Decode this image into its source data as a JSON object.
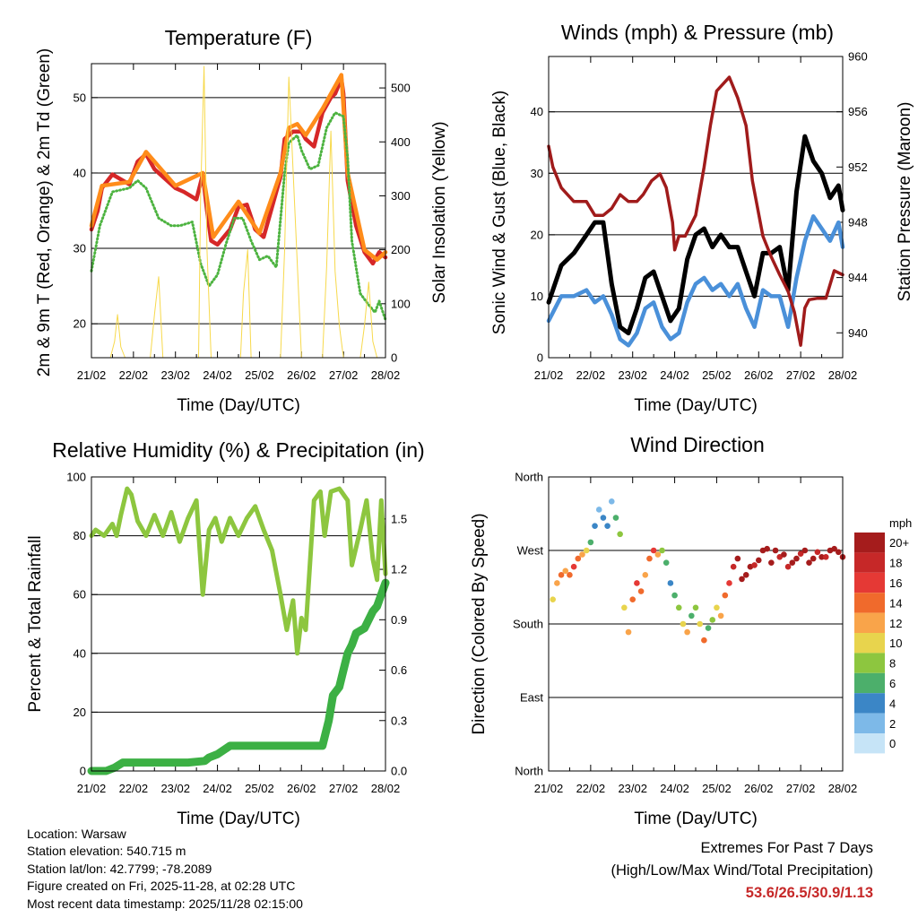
{
  "chart_data": [
    {
      "type": "line",
      "title": "Temperature (F)",
      "xlabel": "Time (Day/UTC)",
      "ylabel": "2m & 9m T (Red, Orange) & 2m Td (Green)",
      "y2label": "Solar Insolation (Yellow)",
      "xticks": [
        "21/02",
        "22/02",
        "23/02",
        "24/02",
        "25/02",
        "26/02",
        "27/02",
        "28/02"
      ],
      "yticks": [
        20,
        30,
        40,
        50
      ],
      "y2ticks": [
        0,
        100,
        200,
        300,
        400,
        500
      ],
      "ylim": [
        15.5,
        54.5
      ],
      "y2lim": [
        0,
        545
      ],
      "series": [
        {
          "name": "2m T",
          "color": "#d62728",
          "x": [
            0,
            0.15,
            0.25,
            0.5,
            0.9,
            1.1,
            1.3,
            1.5,
            1.7,
            2.0,
            2.2,
            2.5,
            2.65,
            2.75,
            2.85,
            3.0,
            3.3,
            3.5,
            3.7,
            3.9,
            4.1,
            4.3,
            4.5,
            4.6,
            4.8,
            5.0,
            5.1,
            5.3,
            5.5,
            5.7,
            5.8,
            5.95,
            6.0,
            6.1,
            6.3,
            6.5,
            6.7,
            6.85,
            7.0
          ],
          "values": [
            32.5,
            35,
            38,
            39.8,
            38.5,
            41.5,
            42.5,
            40.5,
            39.5,
            38,
            37.5,
            36.5,
            39.8,
            35,
            31,
            30.5,
            32.5,
            35.5,
            35.8,
            32.5,
            31.5,
            35.5,
            39.5,
            44.5,
            45.5,
            45.5,
            44.5,
            43.5,
            48,
            50,
            50.5,
            52.5,
            50.5,
            39,
            33,
            29.5,
            28,
            29.5,
            28.8
          ]
        },
        {
          "name": "9m T",
          "color": "#ff8c1a",
          "x": [
            0,
            0.25,
            0.9,
            1.3,
            2.0,
            2.65,
            2.9,
            3.5,
            4.0,
            4.5,
            4.7,
            4.9,
            5.1,
            5.5,
            5.95,
            6.1,
            6.5,
            6.8,
            7.0
          ],
          "values": [
            33,
            38.3,
            38.8,
            42.8,
            38.3,
            40,
            31.5,
            36.2,
            32,
            40,
            46,
            46.5,
            45,
            48.5,
            53,
            40,
            29.8,
            28.5,
            29.5
          ]
        },
        {
          "name": "2m Td",
          "color": "#4db340",
          "x": [
            0,
            0.2,
            0.5,
            0.9,
            1.1,
            1.3,
            1.6,
            1.9,
            2.1,
            2.4,
            2.6,
            2.8,
            3.0,
            3.2,
            3.4,
            3.6,
            3.8,
            4.0,
            4.2,
            4.4,
            4.6,
            4.7,
            4.9,
            5.0,
            5.2,
            5.4,
            5.6,
            5.8,
            6.0,
            6.1,
            6.2,
            6.4,
            6.6,
            6.75,
            6.85,
            7.0
          ],
          "values": [
            27,
            33,
            37.5,
            38,
            39,
            38,
            34,
            33,
            33,
            33.5,
            28,
            25,
            26.5,
            30.5,
            34,
            34,
            31,
            28.5,
            29,
            27.5,
            40,
            44,
            45,
            43,
            40.5,
            41,
            46,
            48,
            47.5,
            42,
            31,
            24,
            22.5,
            21.5,
            23,
            20.5
          ]
        },
        {
          "name": "Solar Insolation",
          "color": "#f7d94c",
          "axis": "right",
          "x": [
            0.45,
            0.55,
            0.62,
            0.7,
            0.8,
            1.4,
            1.5,
            1.6,
            1.7,
            2.55,
            2.6,
            2.68,
            2.75,
            2.85,
            3.55,
            3.62,
            3.72,
            3.8,
            4.5,
            4.6,
            4.7,
            4.85,
            5.0,
            5.1,
            5.5,
            5.6,
            5.7,
            5.8,
            5.9,
            6.0,
            6.1,
            6.4,
            6.5,
            6.6,
            6.7,
            6.8
          ],
          "values": [
            0,
            30,
            80,
            20,
            0,
            0,
            80,
            150,
            0,
            0,
            300,
            540,
            200,
            0,
            0,
            120,
            200,
            0,
            0,
            200,
            520,
            260,
            0,
            0,
            0,
            170,
            420,
            160,
            60,
            0,
            0,
            0,
            60,
            140,
            30,
            0
          ]
        }
      ]
    },
    {
      "type": "line",
      "title": "Winds (mph) & Pressure (mb)",
      "xlabel": "Time (Day/UTC)",
      "ylabel": "Sonic Wind & Gust (Blue, Black)",
      "y2label": "Station Pressure (Maroon)",
      "xticks": [
        "21/02",
        "22/02",
        "23/02",
        "24/02",
        "25/02",
        "26/02",
        "27/02",
        "28/02"
      ],
      "yticks": [
        0,
        10,
        20,
        30,
        40
      ],
      "y2ticks": [
        940,
        944,
        948,
        952,
        956,
        960
      ],
      "ylim": [
        0,
        49
      ],
      "y2lim": [
        938.2,
        960
      ],
      "series": [
        {
          "name": "Sonic Wind",
          "color": "#4a90d9",
          "x": [
            0,
            0.3,
            0.6,
            0.9,
            1.1,
            1.3,
            1.5,
            1.7,
            1.9,
            2.1,
            2.3,
            2.5,
            2.7,
            2.9,
            3.1,
            3.3,
            3.5,
            3.7,
            3.9,
            4.1,
            4.3,
            4.5,
            4.7,
            4.9,
            5.1,
            5.3,
            5.5,
            5.7,
            5.9,
            6.1,
            6.3,
            6.5,
            6.7,
            6.9,
            7.0
          ],
          "values": [
            6,
            10,
            10,
            11,
            9,
            10,
            7,
            3,
            2,
            4,
            8,
            9,
            5,
            3,
            4,
            9,
            12,
            13,
            11,
            12,
            10,
            12,
            8,
            5,
            11,
            10,
            10,
            5,
            13,
            19,
            23,
            21,
            19,
            22,
            18
          ]
        },
        {
          "name": "Gust",
          "color": "#000000",
          "x": [
            0,
            0.3,
            0.6,
            0.9,
            1.1,
            1.3,
            1.5,
            1.7,
            1.9,
            2.1,
            2.3,
            2.5,
            2.7,
            2.9,
            3.1,
            3.3,
            3.5,
            3.7,
            3.9,
            4.1,
            4.3,
            4.5,
            4.7,
            4.9,
            5.1,
            5.3,
            5.5,
            5.7,
            5.9,
            6.1,
            6.3,
            6.5,
            6.7,
            6.9,
            7.0
          ],
          "values": [
            9,
            15,
            17,
            20,
            22,
            22,
            12,
            5,
            4,
            8,
            13,
            14,
            10,
            6,
            8,
            16,
            20,
            21,
            18,
            20,
            18,
            18,
            14,
            10,
            17,
            17,
            18,
            11,
            27,
            36,
            32,
            30,
            26,
            28,
            24
          ]
        },
        {
          "name": "Station Pressure",
          "color": "#a01b1b",
          "axis": "right",
          "x": [
            0,
            0.1,
            0.3,
            0.6,
            0.9,
            1.1,
            1.3,
            1.5,
            1.7,
            1.9,
            2.1,
            2.25,
            2.45,
            2.65,
            2.8,
            2.95,
            3.0,
            3.1,
            3.25,
            3.5,
            3.7,
            3.85,
            4.0,
            4.3,
            4.5,
            4.7,
            4.85,
            5.1,
            5.3,
            5.5,
            5.7,
            5.85,
            6.0,
            6.1,
            6.2,
            6.4,
            6.6,
            6.8,
            7.0
          ],
          "values": [
            953.5,
            952,
            950.5,
            949.5,
            949.5,
            948.5,
            948.5,
            949,
            950,
            949.5,
            949.5,
            950,
            951,
            951.5,
            950.5,
            948,
            946,
            947,
            947,
            948.5,
            952,
            955,
            957.5,
            958.5,
            957,
            955,
            951,
            947,
            945.5,
            944.2,
            943,
            941.5,
            939.1,
            941.8,
            942.4,
            942.5,
            942.5,
            944.5,
            944.2
          ]
        }
      ]
    },
    {
      "type": "line",
      "title": "Relative Humidity (%) & Precipitation (in)",
      "xlabel": "Time (Day/UTC)",
      "ylabel": "Percent & Total Rainfall",
      "xticks": [
        "21/02",
        "22/02",
        "23/02",
        "24/02",
        "25/02",
        "26/02",
        "27/02",
        "28/02"
      ],
      "yticks": [
        0,
        20,
        40,
        60,
        80,
        100
      ],
      "y2ticks": [
        "0.0",
        "0.3",
        "0.6",
        "0.9",
        "1.2",
        "1.5"
      ],
      "ylim": [
        0,
        100
      ],
      "y2lim": [
        0,
        1.75
      ],
      "series": [
        {
          "name": "Relative Humidity",
          "color": "#8dc63f",
          "x": [
            0,
            0.1,
            0.3,
            0.5,
            0.6,
            0.7,
            0.85,
            0.95,
            1.1,
            1.3,
            1.5,
            1.7,
            1.9,
            2.1,
            2.3,
            2.5,
            2.65,
            2.8,
            2.95,
            3.1,
            3.3,
            3.5,
            3.7,
            3.9,
            4.1,
            4.3,
            4.5,
            4.65,
            4.8,
            4.9,
            5.0,
            5.1,
            5.3,
            5.45,
            5.55,
            5.7,
            5.9,
            6.1,
            6.2,
            6.4,
            6.55,
            6.7,
            6.8,
            6.9,
            7.0
          ],
          "values": [
            80,
            82,
            80,
            84,
            80,
            87,
            96,
            94,
            85,
            80,
            87,
            80,
            88,
            78,
            86,
            92,
            60,
            82,
            86,
            78,
            86,
            80,
            86,
            90,
            82,
            75,
            60,
            48,
            58,
            40,
            52,
            48,
            92,
            95,
            80,
            95,
            96,
            92,
            70,
            82,
            92,
            72,
            65,
            92,
            67
          ]
        },
        {
          "name": "Total Precipitation",
          "color": "#3cb044",
          "axis": "right",
          "x": [
            0,
            0.35,
            0.55,
            0.75,
            1.0,
            2.3,
            2.7,
            2.8,
            3.0,
            3.3,
            4.0,
            4.5,
            5.0,
            5.5,
            5.65,
            5.75,
            5.9,
            6.0,
            6.1,
            6.2,
            6.3,
            6.5,
            6.6,
            6.7,
            6.8,
            6.9,
            7.0
          ],
          "values": [
            0,
            0,
            0.02,
            0.05,
            0.05,
            0.05,
            0.06,
            0.08,
            0.1,
            0.15,
            0.15,
            0.15,
            0.15,
            0.15,
            0.3,
            0.45,
            0.5,
            0.6,
            0.7,
            0.75,
            0.82,
            0.85,
            0.9,
            0.95,
            0.98,
            1.05,
            1.12
          ]
        }
      ]
    },
    {
      "type": "scatter",
      "title": "Wind Direction",
      "xlabel": "Time (Day/UTC)",
      "ylabel": "Direction (Colored By Speed)",
      "xticks": [
        "21/02",
        "22/02",
        "23/02",
        "24/02",
        "25/02",
        "26/02",
        "27/02",
        "28/02"
      ],
      "yticks": [
        "North",
        "East",
        "South",
        "West",
        "North"
      ],
      "ylim": [
        0,
        360
      ],
      "legend": {
        "title": "mph",
        "labels": [
          "20+",
          "18",
          "16",
          "14",
          "12",
          "10",
          "8",
          "6",
          "4",
          "2",
          "0"
        ],
        "colors": [
          "#a51c1c",
          "#c62828",
          "#e53935",
          "#f06a2c",
          "#f9a44a",
          "#e8d44d",
          "#8dc63f",
          "#4caf6b",
          "#3b86c6",
          "#7db9e8",
          "#c6e4f7"
        ]
      },
      "series": [
        {
          "name": "Direction",
          "x": [
            0.1,
            0.2,
            0.3,
            0.4,
            0.5,
            0.6,
            0.7,
            0.8,
            0.9,
            1.0,
            1.1,
            1.2,
            1.3,
            1.4,
            1.5,
            1.6,
            1.7,
            1.8,
            1.9,
            2.0,
            2.1,
            2.2,
            2.3,
            2.4,
            2.5,
            2.6,
            2.7,
            2.8,
            2.9,
            3.0,
            3.1,
            3.2,
            3.3,
            3.4,
            3.5,
            3.6,
            3.7,
            3.8,
            3.9,
            4.0,
            4.1,
            4.2,
            4.3,
            4.4,
            4.5,
            4.6,
            4.7,
            4.8,
            4.9,
            5.0,
            5.1,
            5.2,
            5.3,
            5.4,
            5.5,
            5.6,
            5.7,
            5.8,
            5.9,
            6.0,
            6.1,
            6.2,
            6.3,
            6.4,
            6.5,
            6.6,
            6.7,
            6.8,
            6.9,
            7.0
          ],
          "values": [
            210,
            230,
            240,
            245,
            240,
            250,
            260,
            265,
            270,
            280,
            300,
            320,
            310,
            300,
            330,
            310,
            290,
            200,
            170,
            210,
            230,
            220,
            240,
            260,
            270,
            265,
            270,
            255,
            230,
            215,
            200,
            180,
            170,
            190,
            200,
            180,
            160,
            175,
            185,
            200,
            190,
            215,
            230,
            250,
            260,
            235,
            240,
            250,
            252,
            258,
            270,
            272,
            255,
            270,
            262,
            265,
            250,
            255,
            260,
            266,
            270,
            255,
            260,
            268,
            262,
            262,
            270,
            272,
            268,
            262
          ],
          "speeds": [
            10,
            12,
            14,
            12,
            14,
            16,
            14,
            12,
            10,
            6,
            4,
            2,
            4,
            4,
            2,
            6,
            8,
            10,
            12,
            14,
            16,
            14,
            12,
            14,
            16,
            12,
            8,
            6,
            4,
            6,
            8,
            10,
            12,
            6,
            8,
            10,
            14,
            6,
            8,
            10,
            12,
            14,
            16,
            18,
            20,
            20,
            20,
            20,
            18,
            20,
            20,
            20,
            20,
            20,
            18,
            20,
            18,
            20,
            20,
            18,
            20,
            20,
            20,
            18,
            20,
            18,
            20,
            20,
            20,
            20
          ]
        }
      ]
    }
  ],
  "info": {
    "location": "Location: Warsaw",
    "elevation": "Station elevation: 540.715 m",
    "latlon": "Station lat/lon: 42.7799; -78.2089",
    "created": "Figure created on Fri, 2025-11-28, at 02:28 UTC",
    "recent": "Most recent data timestamp: 2025/11/28 02:15:00"
  },
  "extremes": {
    "title": "Extremes For Past 7 Days",
    "subtitle": "(High/Low/Max Wind/Total Precipitation)",
    "values": "53.6/26.5/30.9/1.13"
  }
}
